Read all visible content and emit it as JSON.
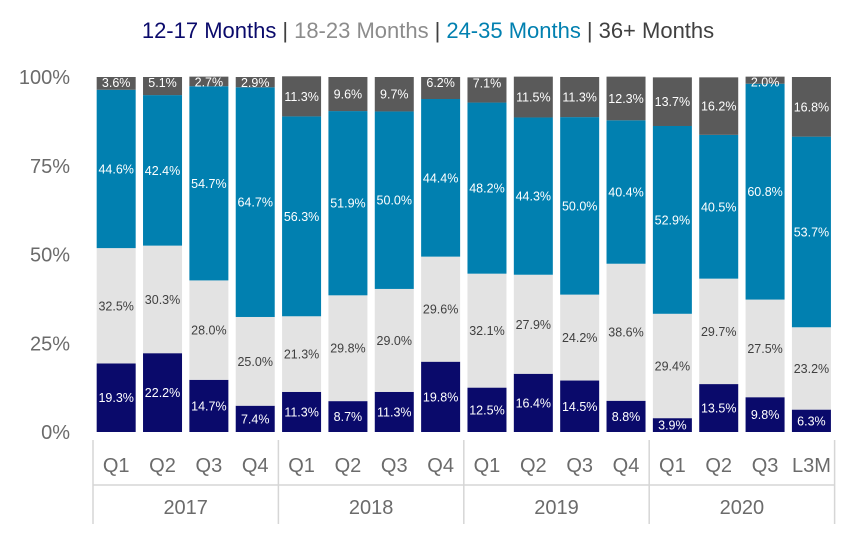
{
  "chart_data": {
    "type": "bar",
    "stacked": "100%",
    "legend_placement": "top-center",
    "grid": false,
    "ylim": [
      0,
      100
    ],
    "y_ticks": [
      {
        "value": 0,
        "label": "0%"
      },
      {
        "value": 25,
        "label": "25%"
      },
      {
        "value": 50,
        "label": "50%"
      },
      {
        "value": 75,
        "label": "75%"
      },
      {
        "value": 100,
        "label": "100%"
      }
    ],
    "categories": [
      "Q1",
      "Q2",
      "Q3",
      "Q4",
      "Q1",
      "Q2",
      "Q3",
      "Q4",
      "Q1",
      "Q2",
      "Q3",
      "Q4",
      "Q1",
      "Q2",
      "Q3",
      "L3M"
    ],
    "groups": [
      {
        "label": "2017",
        "count": 4
      },
      {
        "label": "2018",
        "count": 4
      },
      {
        "label": "2019",
        "count": 4
      },
      {
        "label": "2020",
        "count": 4
      }
    ],
    "separator": "|",
    "series": [
      {
        "name": "12-17 Months",
        "color": "#0a0a6b",
        "label_color": "#ffffff",
        "values": [
          19.3,
          22.2,
          14.7,
          7.4,
          11.3,
          8.7,
          11.3,
          19.8,
          12.5,
          16.4,
          14.5,
          8.8,
          3.9,
          13.5,
          9.8,
          6.3
        ]
      },
      {
        "name": "18-23 Months",
        "color": "#e3e3e3",
        "label_color": "#404040",
        "values": [
          32.5,
          30.3,
          28.0,
          25.0,
          21.3,
          29.8,
          29.0,
          29.6,
          32.1,
          27.9,
          24.2,
          38.6,
          29.4,
          29.7,
          27.5,
          23.2
        ]
      },
      {
        "name": "24-35 Months",
        "color": "#0180b0",
        "label_color": "#ffffff",
        "values": [
          44.6,
          42.4,
          54.7,
          64.7,
          56.3,
          51.9,
          50.0,
          44.4,
          48.2,
          44.3,
          50.0,
          40.4,
          52.9,
          40.5,
          60.8,
          53.7
        ]
      },
      {
        "name": "36+ Months",
        "color": "#5a5a5a",
        "label_color": "#ffffff",
        "values": [
          3.6,
          5.1,
          2.7,
          2.9,
          11.3,
          9.6,
          9.7,
          6.2,
          7.1,
          11.5,
          11.3,
          12.3,
          13.7,
          16.2,
          2.0,
          16.8
        ]
      }
    ]
  }
}
